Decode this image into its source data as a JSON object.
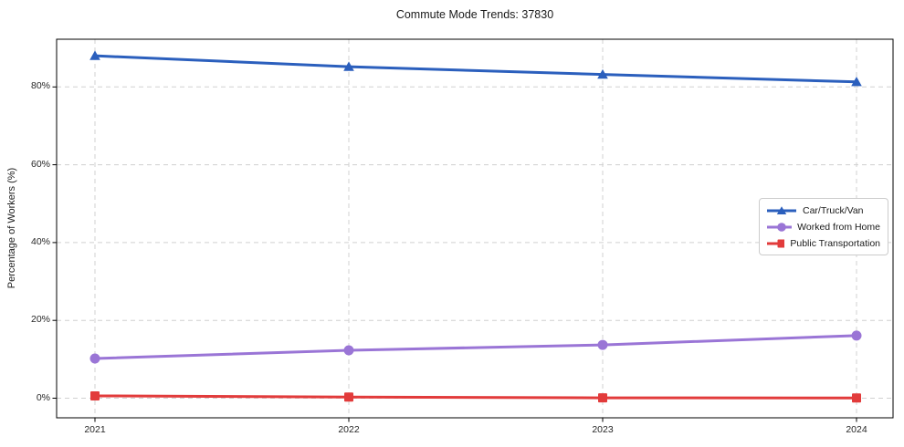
{
  "chart_data": {
    "type": "line",
    "title": "Commute Mode Trends: 37830",
    "xlabel": "",
    "ylabel": "Percentage of Workers (%)",
    "categories": [
      "2021",
      "2022",
      "2023",
      "2024"
    ],
    "y_ticks": [
      0,
      20,
      40,
      60,
      80
    ],
    "y_tick_labels": [
      "0%",
      "20%",
      "40%",
      "60%",
      "80%"
    ],
    "ylim": [
      -5,
      92.5
    ],
    "grid": true,
    "grid_style": "dashed",
    "grid_color": "#d0d0d0",
    "legend_position": "center-right",
    "series": [
      {
        "name": "Car/Truck/Van",
        "color": "#2b5fbd",
        "marker": "triangle",
        "values": [
          88.0,
          85.2,
          83.2,
          81.3
        ]
      },
      {
        "name": "Worked from Home",
        "color": "#9a75d6",
        "marker": "circle",
        "values": [
          10.2,
          12.3,
          13.7,
          16.1
        ]
      },
      {
        "name": "Public Transportation",
        "color": "#e23b3b",
        "marker": "square",
        "values": [
          0.6,
          0.3,
          0.1,
          0.05
        ]
      }
    ]
  }
}
